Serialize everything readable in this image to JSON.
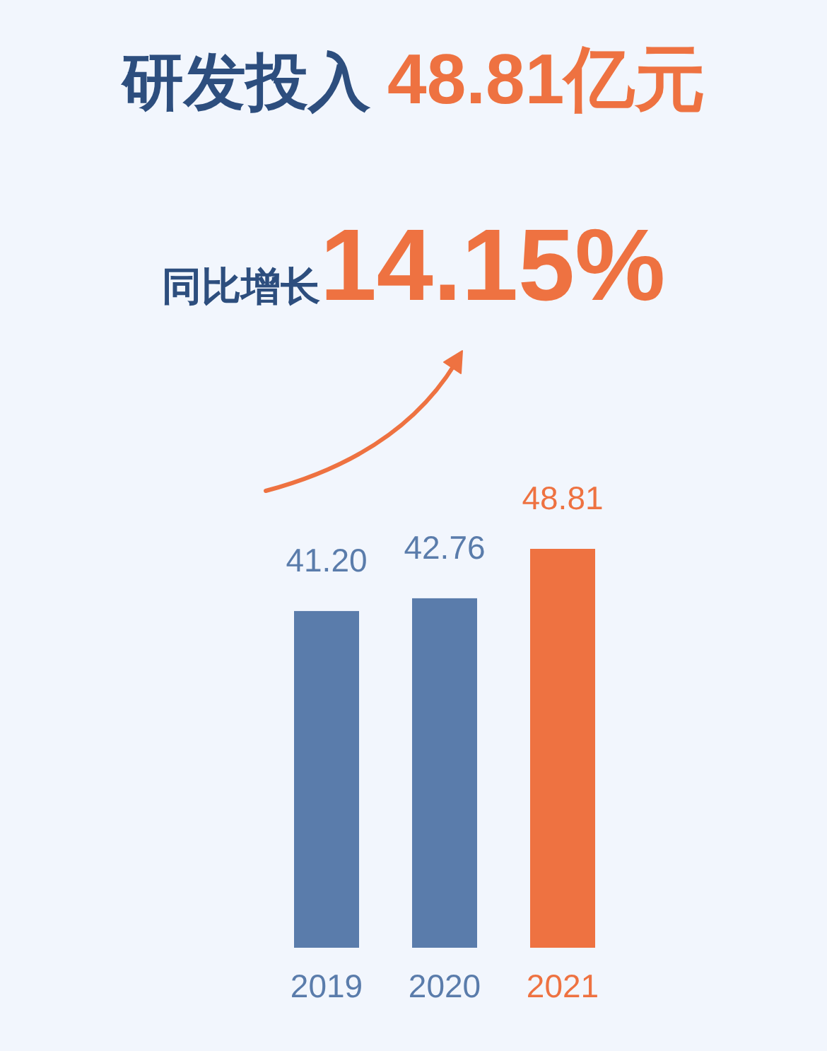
{
  "chart_data": {
    "type": "bar",
    "title": "研发投入 48.81亿元",
    "subtitle": "同比增长14.15%",
    "categories": [
      "2019",
      "2020",
      "2021"
    ],
    "values": [
      41.2,
      42.76,
      48.81
    ],
    "value_labels": [
      "41.20",
      "42.76",
      "48.81"
    ],
    "colors": [
      "#5a7cab",
      "#5a7cab",
      "#ee7241"
    ]
  }
}
